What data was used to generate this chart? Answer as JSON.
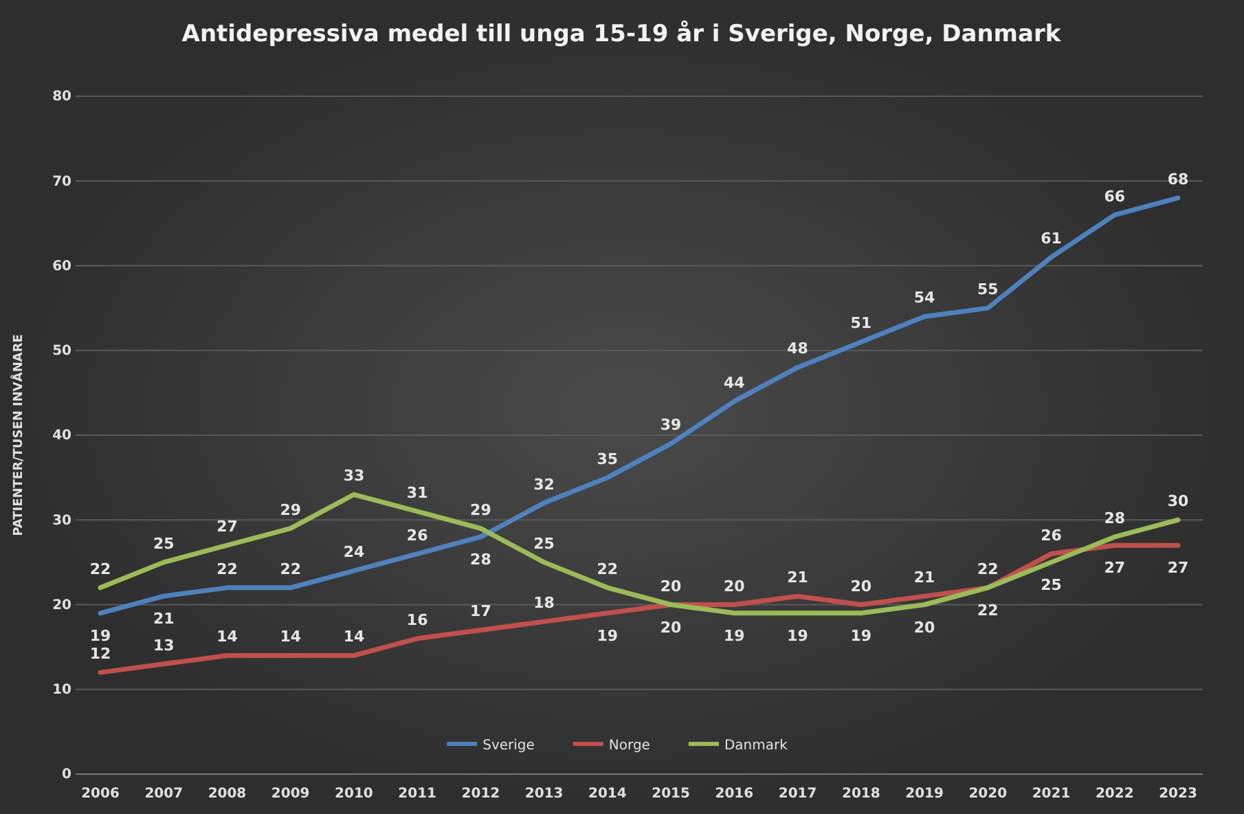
{
  "chart_data": {
    "type": "line",
    "title": "Antidepressiva medel till unga 15-19 år i Sverige, Norge, Danmark",
    "ylabel": "PATIENTER/TUSEN INVÅNARE",
    "categories": [
      "2006",
      "2007",
      "2008",
      "2009",
      "2010",
      "2011",
      "2012",
      "2013",
      "2014",
      "2015",
      "2016",
      "2017",
      "2018",
      "2019",
      "2020",
      "2021",
      "2022",
      "2023"
    ],
    "series": [
      {
        "name": "Sverige",
        "color": "#4f81bd",
        "values": [
          19,
          21,
          22,
          22,
          24,
          26,
          28,
          32,
          35,
          39,
          44,
          48,
          51,
          54,
          55,
          61,
          66,
          68
        ]
      },
      {
        "name": "Norge",
        "color": "#c0504d",
        "values": [
          12,
          13,
          14,
          14,
          14,
          16,
          17,
          18,
          19,
          20,
          20,
          21,
          20,
          21,
          22,
          26,
          27,
          27
        ]
      },
      {
        "name": "Danmark",
        "color": "#9bbb59",
        "values": [
          22,
          25,
          27,
          29,
          33,
          31,
          29,
          25,
          22,
          20,
          19,
          19,
          19,
          20,
          22,
          25,
          28,
          30
        ]
      }
    ],
    "ylim": [
      0,
      80
    ],
    "yticks": [
      0,
      10,
      20,
      30,
      40,
      50,
      60,
      70,
      80
    ],
    "grid": "y",
    "legend": "bottom",
    "data_labels": true,
    "marker": "none",
    "line_style": "solid"
  }
}
